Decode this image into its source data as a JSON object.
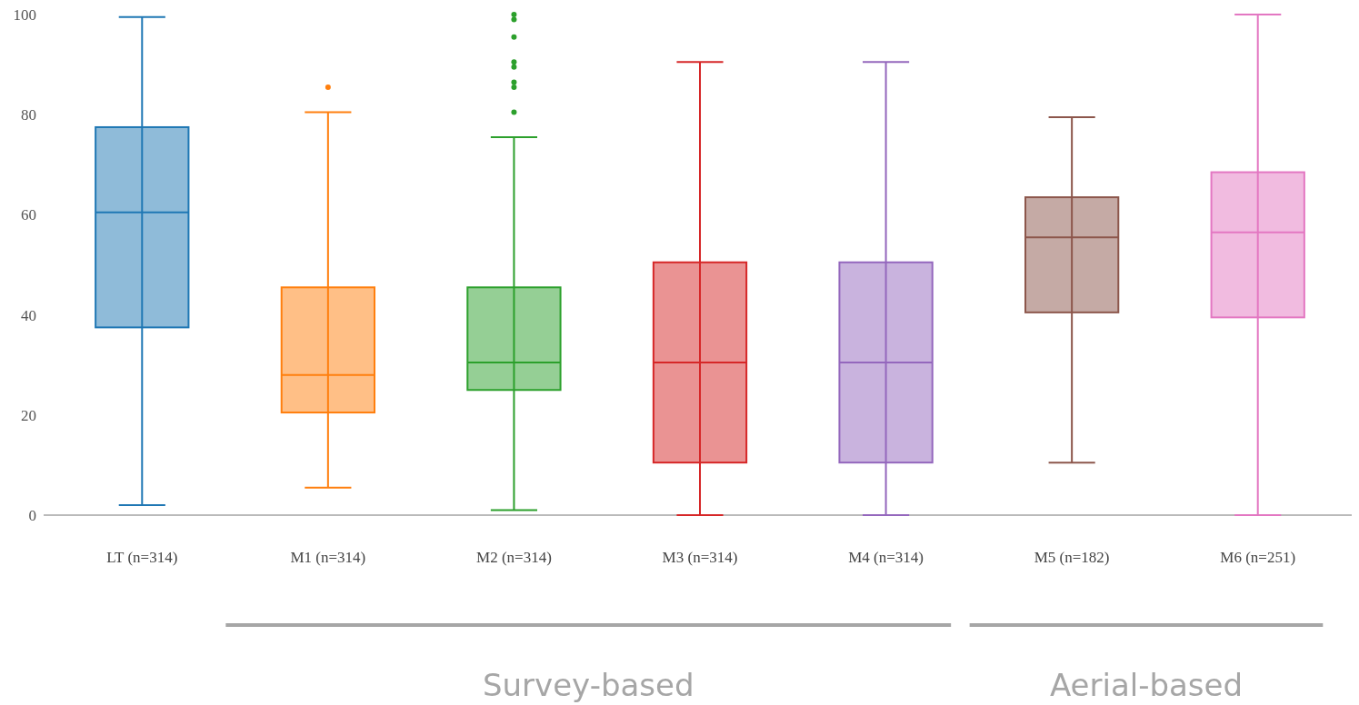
{
  "chart_data": {
    "type": "box",
    "categories": [
      "LT (n=314)",
      "M1 (n=314)",
      "M2 (n=314)",
      "M3 (n=314)",
      "M4 (n=314)",
      "M5 (n=182)",
      "M6 (n=251)"
    ],
    "colors": [
      "#1f77b4",
      "#ff7f0e",
      "#2ca02c",
      "#d62728",
      "#9467bd",
      "#8c564b",
      "#e377c2"
    ],
    "boxes": [
      {
        "low": 2,
        "q1": 37.5,
        "median": 60.5,
        "q3": 77.5,
        "high": 99.5
      },
      {
        "low": 5.5,
        "q1": 20.5,
        "median": 28,
        "q3": 45.5,
        "high": 80.5,
        "outliers": [
          85.5
        ]
      },
      {
        "low": 1,
        "q1": 25,
        "median": 30.5,
        "q3": 45.5,
        "high": 75.5,
        "outliers": [
          100,
          99,
          95.5,
          90.5,
          89.5,
          86.5,
          85.5,
          80.5
        ]
      },
      {
        "low": 0,
        "q1": 10.5,
        "median": 30.5,
        "q3": 50.5,
        "high": 90.5
      },
      {
        "low": 0,
        "q1": 10.5,
        "median": 30.5,
        "q3": 50.5,
        "high": 90.5
      },
      {
        "low": 10.5,
        "q1": 40.5,
        "median": 55.5,
        "q3": 63.5,
        "high": 79.5
      },
      {
        "low": 0,
        "q1": 39.5,
        "median": 56.5,
        "q3": 68.5,
        "high": 100
      }
    ],
    "ylim": [
      0,
      100
    ],
    "yticks": [
      0,
      20,
      40,
      60,
      80,
      100
    ],
    "annotations": [
      "Survey-based",
      "Aerial-based"
    ]
  }
}
